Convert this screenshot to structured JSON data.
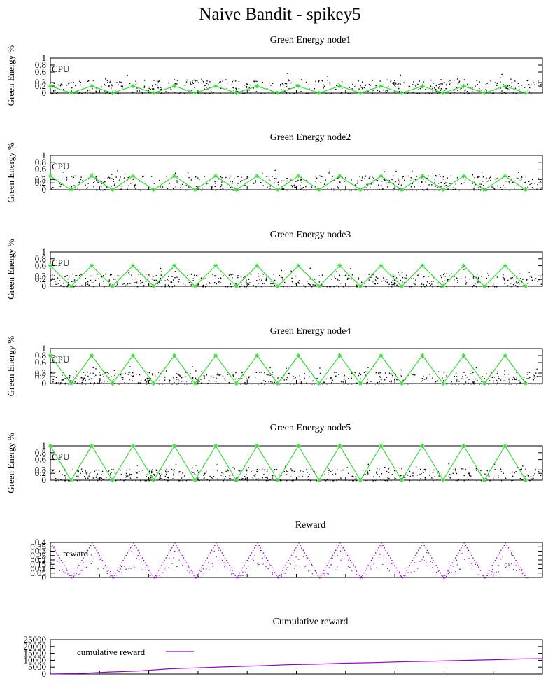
{
  "title": "Naive Bandit - spikey5",
  "colors": {
    "cpu": "#000000",
    "green": "#33dd33",
    "reward": "#9400d3"
  },
  "chart_data": [
    {
      "type": "line",
      "title": "Green Energy node1",
      "ylabel": "Green Energy %",
      "yticks": [
        "0",
        "0.2",
        "0.3",
        "0.6",
        "0.8",
        "1"
      ],
      "ylim": [
        0,
        1
      ],
      "series": [
        {
          "name": "CPU",
          "style": "dots",
          "mean": 0.18,
          "spread": 0.22
        },
        {
          "name": "",
          "style": "line-points",
          "x": [
            0,
            42,
            84,
            126,
            168,
            210,
            252,
            294,
            336,
            378,
            420,
            462,
            504,
            546,
            588,
            630,
            672,
            714,
            756,
            798,
            840,
            882,
            924,
            966
          ],
          "values": [
            0.2,
            0.0,
            0.2,
            0.0,
            0.2,
            0.0,
            0.2,
            0.0,
            0.2,
            0.0,
            0.2,
            0.0,
            0.2,
            0.0,
            0.2,
            0.0,
            0.2,
            0.0,
            0.2,
            0.0,
            0.2,
            0.0,
            0.2,
            0.0
          ]
        }
      ]
    },
    {
      "type": "line",
      "title": "Green Energy node2",
      "ylabel": "Green Energy %",
      "yticks": [
        "0",
        "0.2",
        "0.3",
        "0.6",
        "0.8",
        "1"
      ],
      "ylim": [
        0,
        1
      ],
      "series": [
        {
          "name": "CPU",
          "style": "dots",
          "mean": 0.2,
          "spread": 0.22
        },
        {
          "name": "",
          "style": "line-points",
          "x": [
            0,
            42,
            84,
            126,
            168,
            210,
            252,
            294,
            336,
            378,
            420,
            462,
            504,
            546,
            588,
            630,
            672,
            714,
            756,
            798,
            840,
            882,
            924,
            966
          ],
          "values": [
            0.4,
            0.0,
            0.4,
            0.0,
            0.4,
            0.0,
            0.4,
            0.0,
            0.4,
            0.0,
            0.4,
            0.0,
            0.4,
            0.0,
            0.4,
            0.0,
            0.4,
            0.0,
            0.4,
            0.0,
            0.4,
            0.0,
            0.4,
            0.0
          ]
        }
      ]
    },
    {
      "type": "line",
      "title": "Green Energy node3",
      "ylabel": "Green Energy %",
      "yticks": [
        "0",
        "0.2",
        "0.3",
        "0.6",
        "0.8",
        "1"
      ],
      "ylim": [
        0,
        1
      ],
      "series": [
        {
          "name": "CPU",
          "style": "dots",
          "mean": 0.18,
          "spread": 0.2
        },
        {
          "name": "",
          "style": "line-points",
          "x": [
            0,
            42,
            84,
            126,
            168,
            210,
            252,
            294,
            336,
            378,
            420,
            462,
            504,
            546,
            588,
            630,
            672,
            714,
            756,
            798,
            840,
            882,
            924,
            966
          ],
          "values": [
            0.6,
            0.0,
            0.6,
            0.0,
            0.6,
            0.0,
            0.6,
            0.0,
            0.6,
            0.0,
            0.6,
            0.0,
            0.6,
            0.0,
            0.6,
            0.0,
            0.6,
            0.0,
            0.6,
            0.0,
            0.6,
            0.0,
            0.6,
            0.0
          ]
        }
      ]
    },
    {
      "type": "line",
      "title": "Green Energy node4",
      "ylabel": "Green Energy %",
      "yticks": [
        "0",
        "0.2",
        "0.3",
        "0.6",
        "0.8",
        "1"
      ],
      "ylim": [
        0,
        1
      ],
      "series": [
        {
          "name": "CPU",
          "style": "dots",
          "mean": 0.15,
          "spread": 0.2
        },
        {
          "name": "",
          "style": "line-points",
          "x": [
            0,
            42,
            84,
            126,
            168,
            210,
            252,
            294,
            336,
            378,
            420,
            462,
            504,
            546,
            588,
            630,
            672,
            714,
            756,
            798,
            840,
            882,
            924,
            966
          ],
          "values": [
            0.8,
            0.0,
            0.8,
            0.0,
            0.8,
            0.0,
            0.8,
            0.0,
            0.8,
            0.0,
            0.8,
            0.0,
            0.8,
            0.0,
            0.8,
            0.0,
            0.8,
            0.0,
            0.8,
            0.0,
            0.8,
            0.0,
            0.8,
            0.0
          ]
        }
      ]
    },
    {
      "type": "line",
      "title": "Green Energy node5",
      "ylabel": "Green Energy %",
      "yticks": [
        "0",
        "0.2",
        "0.3",
        "0.6",
        "0.8",
        "1"
      ],
      "ylim": [
        0,
        1
      ],
      "series": [
        {
          "name": "CPU",
          "style": "dots",
          "mean": 0.15,
          "spread": 0.2
        },
        {
          "name": "",
          "style": "line-points",
          "x": [
            0,
            42,
            84,
            126,
            168,
            210,
            252,
            294,
            336,
            378,
            420,
            462,
            504,
            546,
            588,
            630,
            672,
            714,
            756,
            798,
            840,
            882,
            924,
            966
          ],
          "values": [
            1.0,
            0.0,
            1.0,
            0.0,
            1.0,
            0.0,
            1.0,
            0.0,
            1.0,
            0.0,
            1.0,
            0.0,
            1.0,
            0.0,
            1.0,
            0.0,
            1.0,
            0.0,
            1.0,
            0.0,
            1.0,
            0.0,
            1.0,
            0.0
          ]
        }
      ]
    },
    {
      "type": "line",
      "title": "Reward",
      "ylabel": "",
      "yticks": [
        "0",
        "0.05",
        "0.1",
        "0.15",
        "0.2",
        "0.25",
        "0.3",
        "0.35",
        "0.4"
      ],
      "ylim": [
        0,
        0.4
      ],
      "series": [
        {
          "name": "reward",
          "style": "dots",
          "x": [
            0,
            42,
            84,
            126,
            168,
            210,
            252,
            294,
            336,
            378,
            420,
            462,
            504,
            546,
            588,
            630,
            672,
            714,
            756,
            798,
            840,
            882,
            924,
            966
          ],
          "values": [
            0.4,
            0.0,
            0.4,
            0.0,
            0.4,
            0.0,
            0.4,
            0.0,
            0.4,
            0.0,
            0.4,
            0.0,
            0.4,
            0.0,
            0.4,
            0.0,
            0.4,
            0.0,
            0.4,
            0.0,
            0.4,
            0.0,
            0.4,
            0.0
          ]
        }
      ]
    },
    {
      "type": "line",
      "title": "Cumulative reward",
      "ylabel": "",
      "yticks": [
        "0",
        "5000",
        "10000",
        "15000",
        "20000",
        "25000"
      ],
      "ylim": [
        0,
        25000
      ],
      "series": [
        {
          "name": "cumulative reward",
          "style": "line",
          "x": [
            0,
            60,
            120,
            180,
            240,
            300,
            360,
            420,
            480,
            540,
            600,
            660,
            720,
            780,
            840,
            900,
            960,
            1000
          ],
          "values": [
            0,
            400,
            1500,
            2200,
            3800,
            4500,
            5300,
            5900,
            6800,
            7200,
            7900,
            8300,
            9000,
            9400,
            9900,
            10400,
            11000,
            11200
          ]
        }
      ]
    }
  ]
}
